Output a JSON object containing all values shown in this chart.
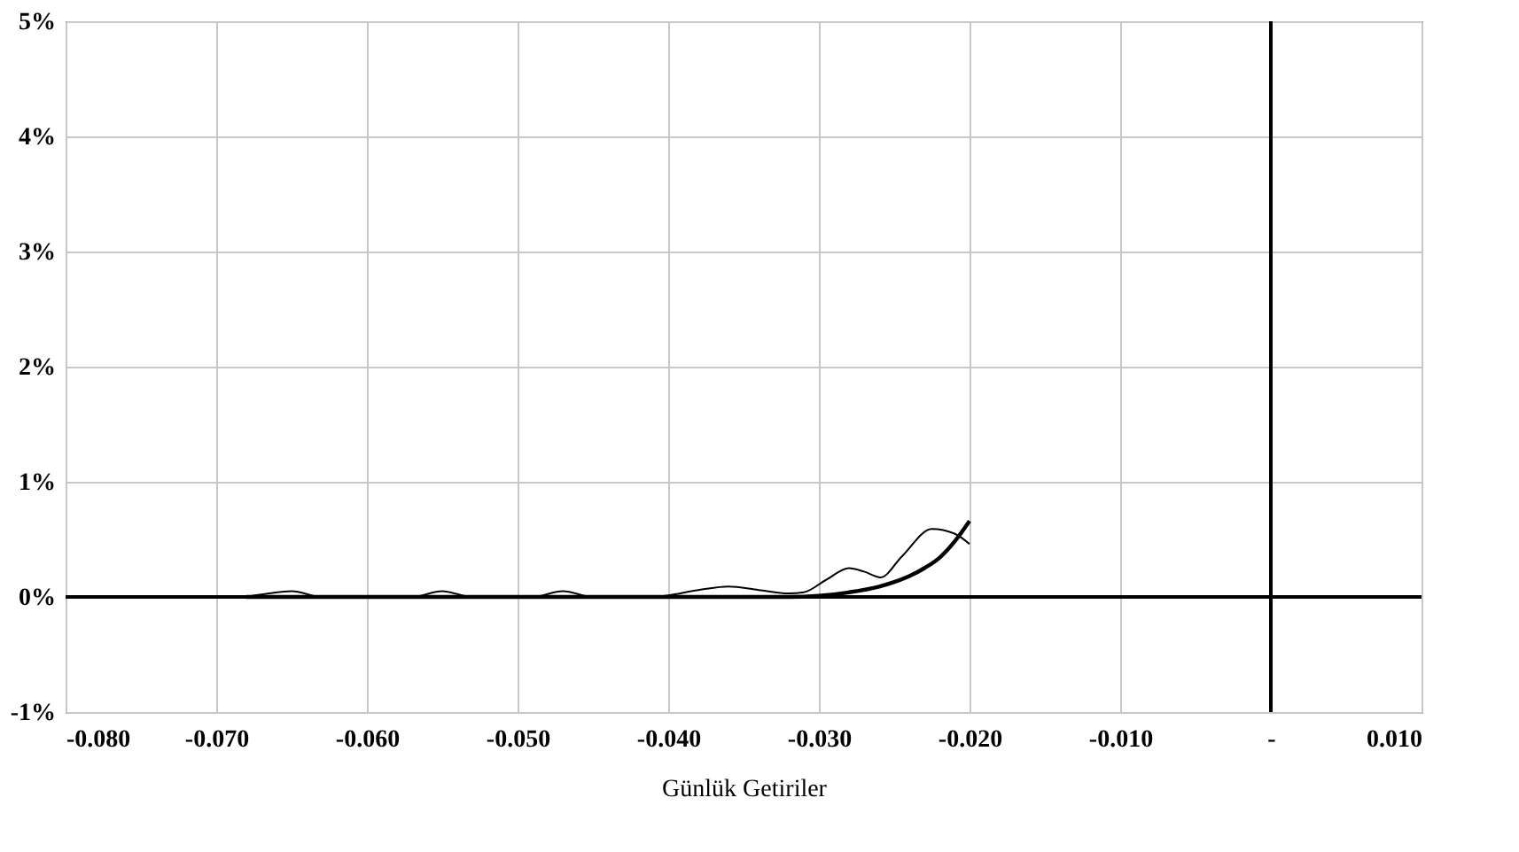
{
  "chart_data": {
    "type": "line",
    "xlabel": "Günlük Getiriler",
    "series": [
      {
        "color": "#000000",
        "x": [
          -0.068,
          -0.0665,
          -0.065,
          -0.063,
          -0.057,
          -0.055,
          -0.053,
          -0.049,
          -0.047,
          -0.045,
          -0.041,
          -0.038,
          -0.036,
          -0.034,
          -0.032,
          -0.031,
          -0.0295,
          -0.028,
          -0.027,
          -0.0259,
          -0.0245,
          -0.0225,
          -0.021,
          -0.02
        ],
        "values": [
          0,
          0.03,
          0.05,
          0,
          0,
          0.05,
          0,
          0,
          0.05,
          0,
          0,
          0.06,
          0.09,
          0.06,
          0.03,
          0.04,
          0.15,
          0.25,
          0.22,
          0.17,
          0.35,
          0.59,
          0.55,
          0.46
        ]
      },
      {
        "color": "#000000",
        "x": [
          -0.068,
          -0.06,
          -0.05,
          -0.04,
          -0.032,
          -0.03,
          -0.028,
          -0.026,
          -0.025,
          -0.024,
          -0.023,
          -0.022,
          -0.021,
          -0.02
        ],
        "values": [
          0,
          0,
          0,
          0,
          0,
          0.01,
          0.04,
          0.09,
          0.13,
          0.18,
          0.25,
          0.34,
          0.48,
          0.66
        ]
      }
    ],
    "xlim": [
      -0.08,
      0.01
    ],
    "xticks": [
      {
        "value": -0.08,
        "label": "-0.080"
      },
      {
        "value": -0.07,
        "label": "-0.070"
      },
      {
        "value": -0.06,
        "label": "-0.060"
      },
      {
        "value": -0.05,
        "label": "-0.050"
      },
      {
        "value": -0.04,
        "label": "-0.040"
      },
      {
        "value": -0.03,
        "label": "-0.030"
      },
      {
        "value": -0.02,
        "label": "-0.020"
      },
      {
        "value": -0.01,
        "label": "-0.010"
      },
      {
        "value": 0,
        "label": "-"
      },
      {
        "value": 0.01,
        "label": "0.010"
      }
    ],
    "ylim": [
      -1,
      5
    ],
    "yticks": [
      {
        "value": -1,
        "label": "-1%"
      },
      {
        "value": 0,
        "label": "0%"
      },
      {
        "value": 1,
        "label": "1%"
      },
      {
        "value": 2,
        "label": "2%"
      },
      {
        "value": 3,
        "label": "3%"
      },
      {
        "value": 4,
        "label": "4%"
      },
      {
        "value": 5,
        "label": "5%"
      }
    ],
    "grid": true
  }
}
